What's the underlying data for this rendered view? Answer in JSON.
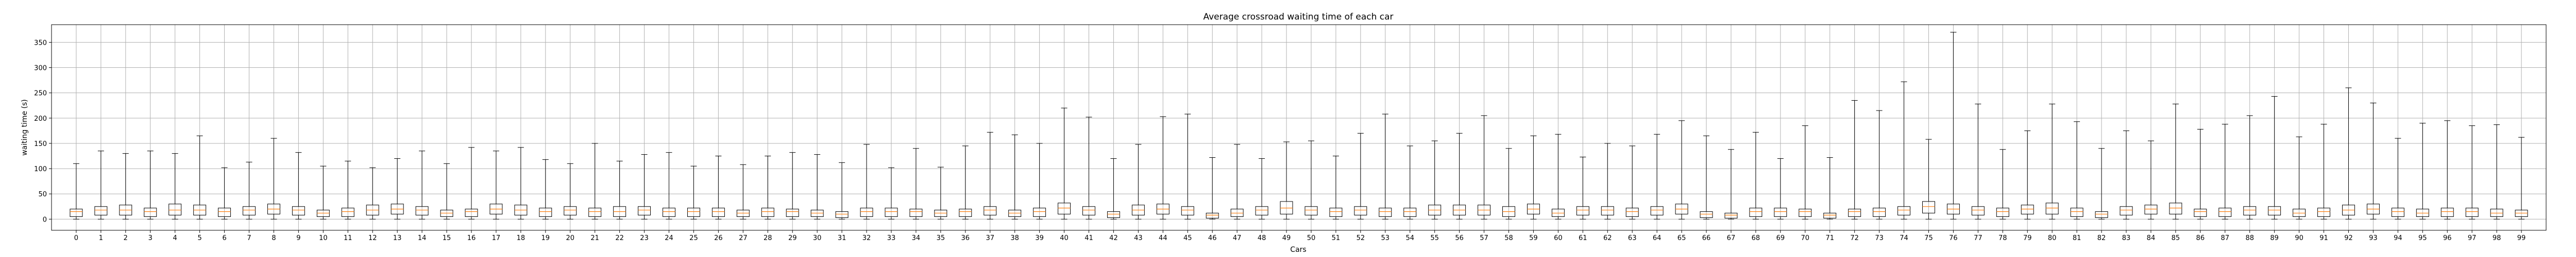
{
  "chart_data": {
    "type": "boxplot",
    "title": "Average crossroad waiting time of each car",
    "xlabel": "Cars",
    "ylabel": "waiting time (s)",
    "ylim": [
      -22,
      385
    ],
    "yticks": [
      0,
      50,
      100,
      150,
      200,
      250,
      300,
      350
    ],
    "grid": true,
    "colors": {
      "box": "#000000",
      "median": "#ff7f0e",
      "grid": "#b0b0b0"
    },
    "categories": [
      "0",
      "1",
      "2",
      "3",
      "4",
      "5",
      "6",
      "7",
      "8",
      "9",
      "10",
      "11",
      "12",
      "13",
      "14",
      "15",
      "16",
      "17",
      "18",
      "19",
      "20",
      "21",
      "22",
      "23",
      "24",
      "25",
      "26",
      "27",
      "28",
      "29",
      "30",
      "31",
      "32",
      "33",
      "34",
      "35",
      "36",
      "37",
      "38",
      "39",
      "40",
      "41",
      "42",
      "43",
      "44",
      "45",
      "46",
      "47",
      "48",
      "49",
      "50",
      "51",
      "52",
      "53",
      "54",
      "55",
      "56",
      "57",
      "58",
      "59",
      "60",
      "61",
      "62",
      "63",
      "64",
      "65",
      "66",
      "67",
      "68",
      "69",
      "70",
      "71",
      "72",
      "73",
      "74",
      "75",
      "76",
      "77",
      "78",
      "79",
      "80",
      "81",
      "82",
      "83",
      "84",
      "85",
      "86",
      "87",
      "88",
      "89",
      "90",
      "91",
      "92",
      "93",
      "94",
      "95",
      "96",
      "97",
      "98",
      "99"
    ],
    "whisker_max": [
      110,
      135,
      130,
      135,
      130,
      165,
      102,
      113,
      160,
      132,
      105,
      115,
      102,
      120,
      135,
      110,
      142,
      135,
      142,
      118,
      110,
      150,
      115,
      128,
      132,
      105,
      125,
      108,
      125,
      132,
      128,
      112,
      148,
      102,
      140,
      103,
      145,
      172,
      167,
      150,
      220,
      202,
      120,
      148,
      203,
      208,
      122,
      148,
      120,
      153,
      155,
      125,
      170,
      208,
      145,
      155,
      170,
      205,
      140,
      165,
      168,
      123,
      150,
      145,
      168,
      195,
      165,
      138,
      172,
      120,
      185,
      122,
      235,
      215,
      272,
      158,
      370,
      228,
      138,
      175,
      228,
      193,
      140,
      175,
      155,
      228,
      178,
      188,
      205,
      243,
      163,
      188,
      260,
      230,
      160,
      190,
      195,
      185,
      187,
      162
    ],
    "q3": [
      20,
      25,
      28,
      22,
      30,
      28,
      22,
      25,
      30,
      25,
      18,
      22,
      28,
      30,
      25,
      18,
      20,
      30,
      28,
      22,
      25,
      22,
      25,
      25,
      22,
      22,
      22,
      18,
      22,
      20,
      18,
      15,
      22,
      22,
      20,
      18,
      20,
      25,
      18,
      22,
      32,
      25,
      15,
      28,
      30,
      25,
      12,
      20,
      25,
      35,
      25,
      22,
      25,
      22,
      22,
      28,
      28,
      28,
      25,
      30,
      20,
      25,
      25,
      22,
      25,
      30,
      15,
      12,
      22,
      22,
      20,
      12,
      20,
      22,
      25,
      35,
      30,
      25,
      22,
      28,
      32,
      22,
      15,
      25,
      28,
      32,
      20,
      22,
      25,
      25,
      20,
      22,
      28,
      30,
      22,
      20,
      22,
      22,
      20,
      18
    ],
    "median": [
      15,
      18,
      18,
      15,
      18,
      18,
      15,
      18,
      20,
      18,
      12,
      15,
      18,
      20,
      18,
      12,
      15,
      20,
      18,
      15,
      18,
      15,
      15,
      18,
      15,
      15,
      15,
      12,
      15,
      15,
      12,
      10,
      15,
      15,
      15,
      12,
      15,
      18,
      12,
      15,
      22,
      18,
      10,
      18,
      20,
      18,
      8,
      12,
      18,
      22,
      18,
      15,
      18,
      15,
      15,
      18,
      18,
      18,
      15,
      20,
      12,
      18,
      18,
      15,
      18,
      20,
      10,
      8,
      15,
      15,
      15,
      8,
      15,
      15,
      18,
      25,
      20,
      18,
      15,
      20,
      22,
      15,
      10,
      18,
      20,
      22,
      15,
      15,
      18,
      18,
      12,
      15,
      18,
      20,
      15,
      12,
      15,
      15,
      12,
      12
    ],
    "q1": [
      5,
      8,
      8,
      5,
      8,
      8,
      5,
      8,
      10,
      8,
      5,
      5,
      8,
      10,
      8,
      5,
      5,
      10,
      8,
      5,
      8,
      5,
      5,
      8,
      5,
      5,
      5,
      5,
      5,
      5,
      5,
      3,
      5,
      5,
      5,
      5,
      5,
      8,
      5,
      5,
      10,
      8,
      3,
      8,
      10,
      8,
      2,
      5,
      8,
      10,
      8,
      5,
      8,
      5,
      5,
      8,
      8,
      8,
      5,
      10,
      5,
      8,
      8,
      5,
      8,
      10,
      3,
      2,
      5,
      5,
      5,
      2,
      5,
      5,
      8,
      12,
      10,
      8,
      5,
      10,
      10,
      5,
      3,
      8,
      10,
      10,
      5,
      5,
      8,
      8,
      5,
      5,
      8,
      10,
      5,
      5,
      5,
      5,
      5,
      5
    ],
    "whisker_min": [
      0,
      0,
      0,
      0,
      0,
      0,
      0,
      0,
      0,
      0,
      0,
      0,
      0,
      0,
      0,
      0,
      0,
      0,
      0,
      0,
      0,
      0,
      0,
      0,
      0,
      0,
      0,
      0,
      0,
      0,
      0,
      0,
      0,
      0,
      0,
      0,
      0,
      0,
      0,
      0,
      0,
      0,
      0,
      0,
      0,
      0,
      0,
      0,
      0,
      0,
      0,
      0,
      0,
      0,
      0,
      0,
      0,
      0,
      0,
      0,
      0,
      0,
      0,
      0,
      0,
      0,
      0,
      0,
      0,
      0,
      0,
      0,
      0,
      0,
      0,
      0,
      0,
      0,
      0,
      0,
      0,
      0,
      0,
      0,
      0,
      0,
      0,
      0,
      0,
      0,
      0,
      0,
      0,
      0,
      0,
      0,
      0,
      0,
      0,
      0
    ]
  }
}
